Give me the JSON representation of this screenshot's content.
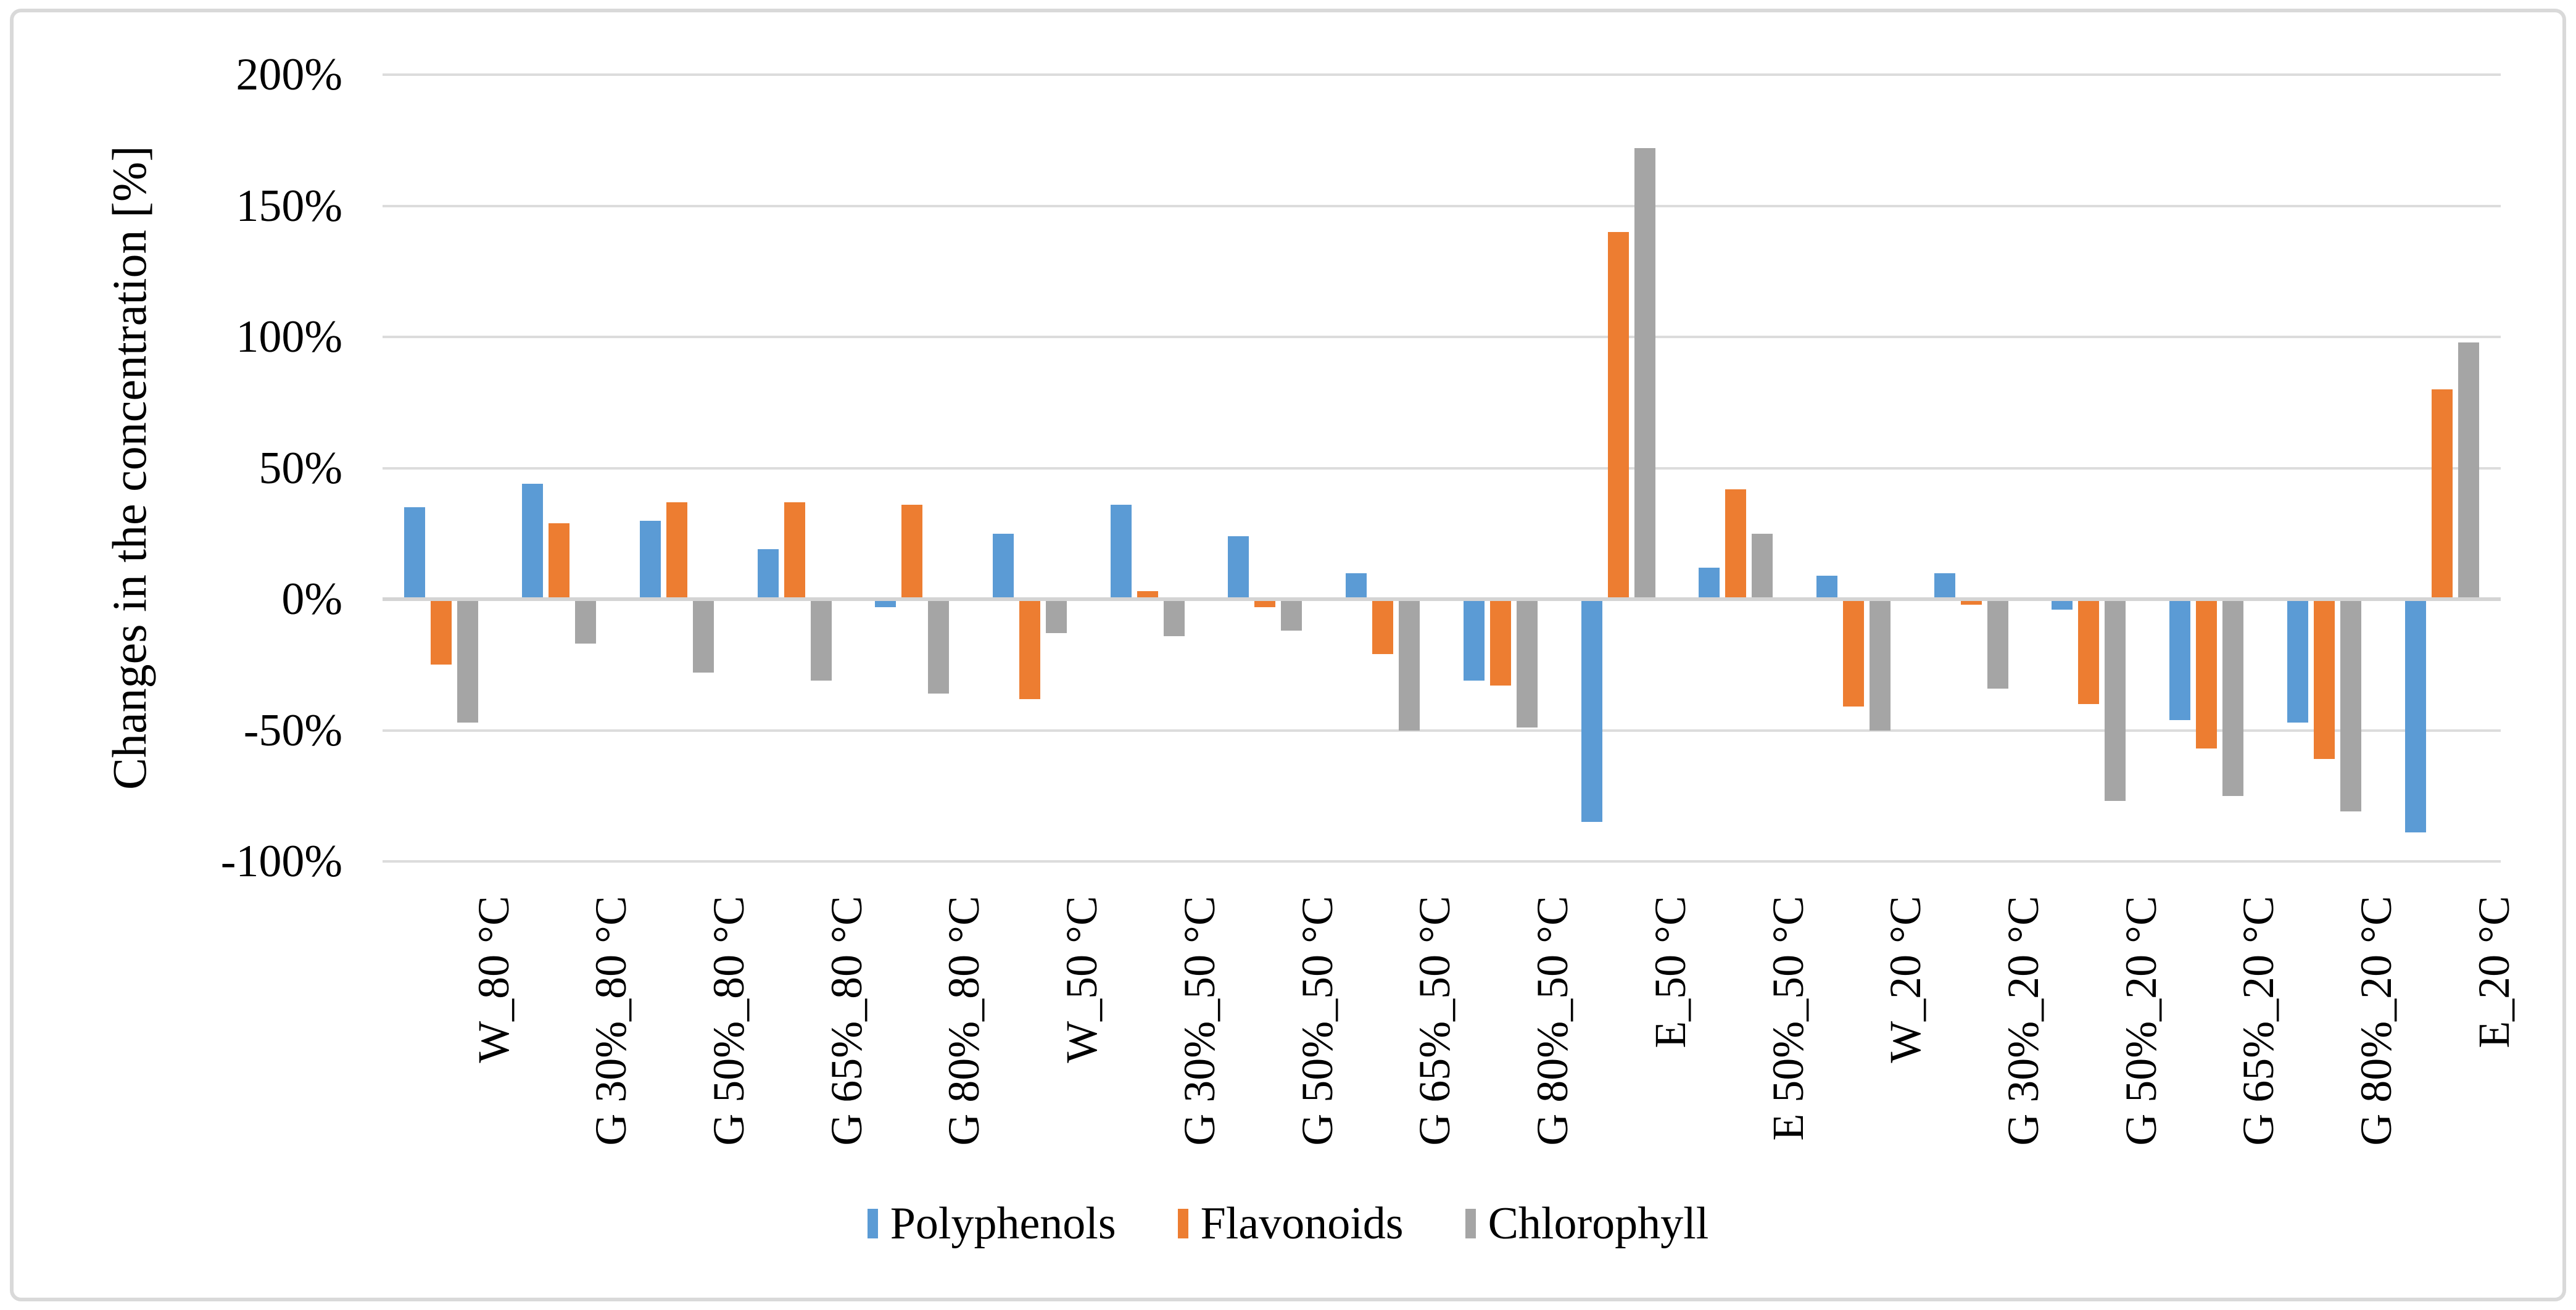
{
  "figure": {
    "background": "#ffffff",
    "frame_border_color": "#d9d9d9",
    "gridline_color": "#dcdcdc",
    "zero_axis_color": "#d4d4d4",
    "text_color": "#000000"
  },
  "chart_data": {
    "type": "bar",
    "title": "",
    "xlabel": "",
    "ylabel": "Changes in the concentration [%]",
    "ylim": [
      -100,
      200
    ],
    "ytick_step": 50,
    "yticks": [
      200,
      150,
      100,
      50,
      0,
      -50,
      -100
    ],
    "ytick_labels": [
      "200%",
      "150%",
      "100%",
      "50%",
      "0%",
      "-50%",
      "-100%"
    ],
    "grid": true,
    "legend_position": "bottom",
    "categories": [
      "W_80 °C",
      "G 30%_80 °C",
      "G 50%_80 °C",
      "G 65%_80 °C",
      "G 80%_80 °C",
      "W_50 °C",
      "G 30%_50 °C",
      "G 50%_50 °C",
      "G 65%_50 °C",
      "G 80%_50 °C",
      "E_50 °C",
      "E 50%_50 °C",
      "W_20 °C",
      "G 30%_20 °C",
      "G 50%_20 °C",
      "G 65%_20 °C",
      "G 80%_20 °C",
      "E_20 °C"
    ],
    "series": [
      {
        "name": "Polyphenols",
        "color": "#5B9BD5",
        "values": [
          35,
          44,
          30,
          19,
          -3,
          25,
          36,
          24,
          10,
          -31,
          -85,
          12,
          9,
          10,
          -4,
          -46,
          -47,
          -89
        ]
      },
      {
        "name": "Flavonoids",
        "color": "#ED7D31",
        "values": [
          -25,
          29,
          37,
          37,
          36,
          -38,
          3,
          -3,
          -21,
          -33,
          140,
          42,
          -41,
          -2,
          -40,
          -57,
          -61,
          80
        ]
      },
      {
        "name": "Chlorophyll",
        "color": "#A5A5A5",
        "values": [
          -47,
          -17,
          -28,
          -31,
          -36,
          -13,
          -14,
          -12,
          -50,
          -49,
          172,
          25,
          -50,
          -34,
          -77,
          -75,
          -81,
          98
        ]
      }
    ]
  }
}
